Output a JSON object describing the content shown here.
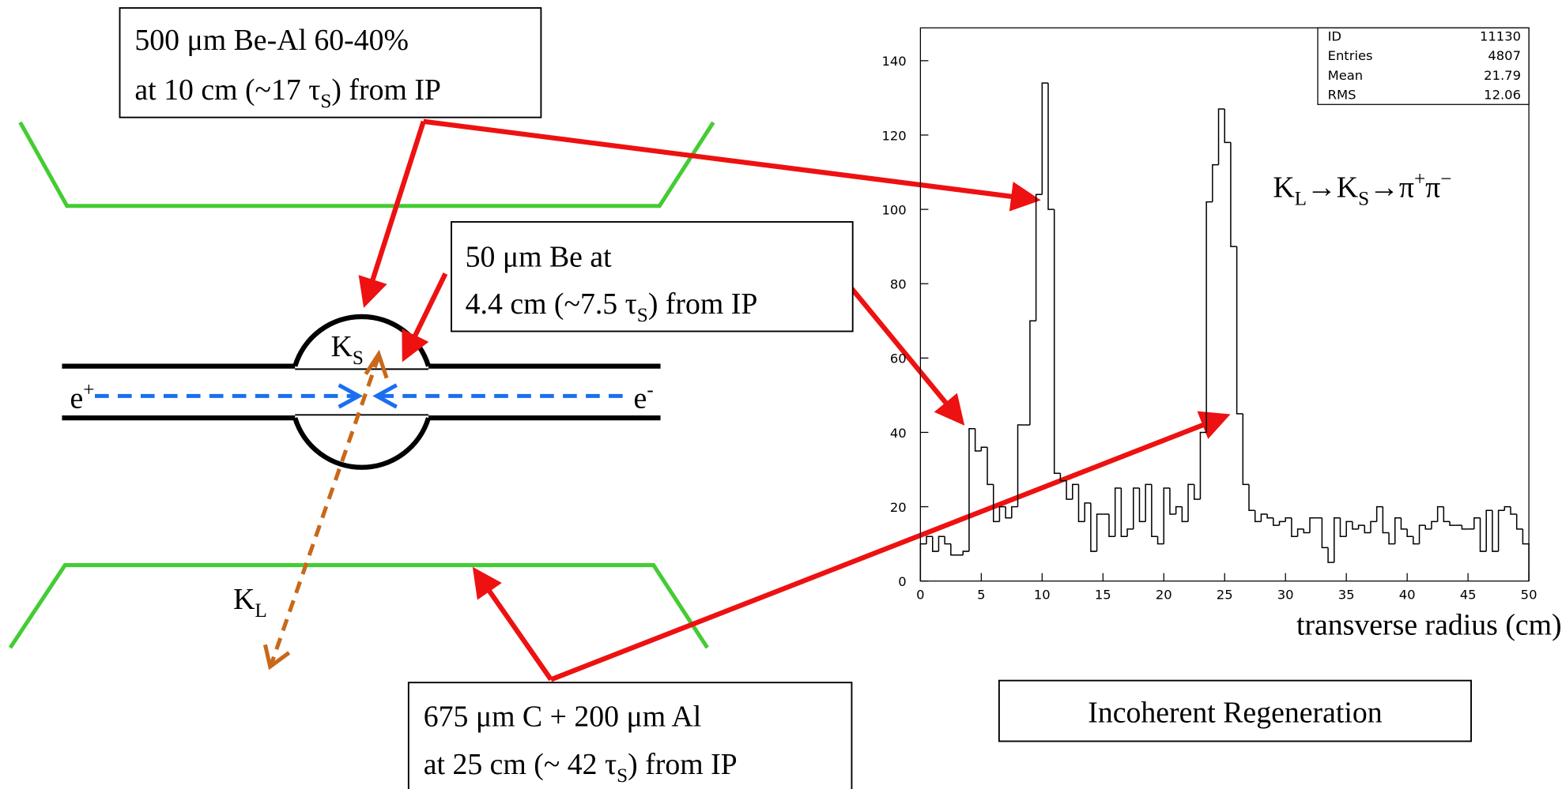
{
  "labels": {
    "box1": {
      "line1": "500 μm Be-Al  60-40%",
      "line2": {
        "pre": "at 10 cm (~17 τ",
        "sub": "S",
        "post": ") from IP"
      }
    },
    "box2": {
      "line1": "50 μm Be at",
      "line2": {
        "pre": "4.4 cm (~7.5 τ",
        "sub": "S",
        "post": ") from IP"
      }
    },
    "box3": {
      "line1": "675 μm C + 200 μm Al",
      "line2": {
        "pre": "at 25 cm (~ 42 τ",
        "sub": "S",
        "post": ") from IP"
      }
    },
    "ks": {
      "main": "K",
      "sub": "S"
    },
    "kl": {
      "main": "K",
      "sub": "L"
    },
    "eplus": {
      "main": "e",
      "sup": "+"
    },
    "eminus": {
      "main": "e",
      "sup": "-"
    },
    "regeneration": "Incoherent Regeneration"
  },
  "chart_data": {
    "type": "histogram",
    "x_label": "transverse radius (cm)",
    "annotation": [
      "K",
      "L",
      "→K",
      "S",
      "→π",
      "+",
      "π",
      "−"
    ],
    "stats": [
      [
        "ID",
        "11130"
      ],
      [
        "Entries",
        "4807"
      ],
      [
        "Mean",
        "21.79"
      ],
      [
        "RMS",
        "12.06"
      ]
    ],
    "xlim": [
      0,
      50
    ],
    "ylim": [
      0,
      140
    ],
    "xticks": [
      0,
      5,
      10,
      15,
      20,
      25,
      30,
      35,
      40,
      45,
      50
    ],
    "yticks": [
      0,
      20,
      40,
      60,
      80,
      100,
      120,
      140
    ],
    "color": "#000000",
    "bins": [
      0,
      0.5,
      1,
      1.5,
      2,
      2.5,
      3,
      3.5,
      4,
      4.5,
      5,
      5.5,
      6,
      6.5,
      7,
      7.5,
      8,
      8.5,
      9,
      9.5,
      10,
      10.5,
      11,
      11.5,
      12,
      12.5,
      13,
      13.5,
      14,
      14.5,
      15,
      15.5,
      16,
      16.5,
      17,
      17.5,
      18,
      18.5,
      19,
      19.5,
      20,
      20.5,
      21,
      21.5,
      22,
      22.5,
      23,
      23.5,
      24,
      24.5,
      25,
      25.5,
      26,
      26.5,
      27,
      27.5,
      28,
      28.5,
      29,
      29.5,
      30,
      30.5,
      31,
      31.5,
      32,
      32.5,
      33,
      33.5,
      34,
      34.5,
      35,
      35.5,
      36,
      36.5,
      37,
      37.5,
      38,
      38.5,
      39,
      39.5,
      40,
      40.5,
      41,
      41.5,
      42,
      42.5,
      43,
      43.5,
      44,
      44.5,
      45,
      45.5,
      46,
      46.5,
      47,
      47.5,
      48,
      48.5,
      49,
      49.5,
      50
    ],
    "values": [
      10,
      12,
      8,
      12,
      10,
      7,
      7,
      8,
      41,
      35,
      36,
      26,
      16,
      20,
      17,
      20,
      42,
      42,
      70,
      104,
      134,
      100,
      29,
      27,
      22,
      26,
      16,
      21,
      8,
      18,
      18,
      12,
      25,
      12,
      14,
      25,
      16,
      26,
      12,
      10,
      25,
      18,
      20,
      16,
      26,
      22,
      40,
      102,
      112,
      127,
      118,
      90,
      45,
      26,
      19,
      16,
      18,
      17,
      15,
      16,
      17,
      12,
      14,
      13,
      17,
      17,
      9,
      5,
      17,
      12,
      16,
      14,
      15,
      13,
      16,
      20,
      13,
      10,
      17,
      14,
      12,
      10,
      15,
      14,
      16,
      20,
      16,
      15,
      15,
      14,
      14,
      17,
      8,
      19,
      8,
      19,
      20,
      18,
      14,
      10
    ]
  }
}
